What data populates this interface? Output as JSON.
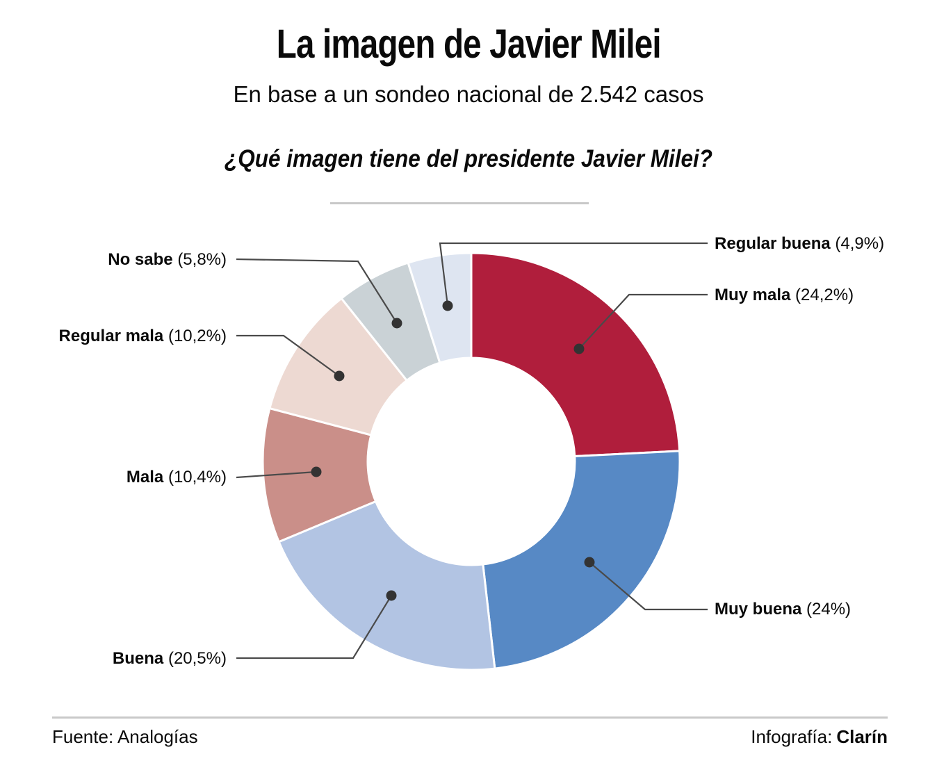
{
  "header": {
    "title": "La imagen de Javier Milei",
    "subtitle": "En base a un sondeo nacional de 2.542 casos",
    "question": "¿Qué imagen tiene del presidente Javier Milei?"
  },
  "chart_data": {
    "type": "pie",
    "subtype": "donut",
    "title": "¿Qué imagen tiene del presidente Javier Milei?",
    "sample_note": "En base a un sondeo nacional de 2.542 casos",
    "unit": "%",
    "start_angle_deg": 0,
    "direction": "clockwise",
    "inner_radius_ratio": 0.5,
    "slices": [
      {
        "label": "Muy mala",
        "value": 24.2,
        "display": "(24,2%)",
        "color": "#b01e3c"
      },
      {
        "label": "Muy buena",
        "value": 24.0,
        "display": "(24%)",
        "color": "#5789c5"
      },
      {
        "label": "Buena",
        "value": 20.5,
        "display": "(20,5%)",
        "color": "#b2c4e3"
      },
      {
        "label": "Mala",
        "value": 10.4,
        "display": "(10,4%)",
        "color": "#ca8f89"
      },
      {
        "label": "Regular mala",
        "value": 10.2,
        "display": "(10,2%)",
        "color": "#edd9d2"
      },
      {
        "label": "No sabe",
        "value": 5.8,
        "display": "(5,8%)",
        "color": "#cad2d6"
      },
      {
        "label": "Regular buena",
        "value": 4.9,
        "display": "(4,9%)",
        "color": "#dee5f1"
      }
    ],
    "leader_line_color": "#4a4a4a",
    "leader_dot_color": "#333333"
  },
  "footer": {
    "source": "Fuente: Analogías",
    "credit_label": "Infografía:",
    "credit_name": "Clarín"
  }
}
